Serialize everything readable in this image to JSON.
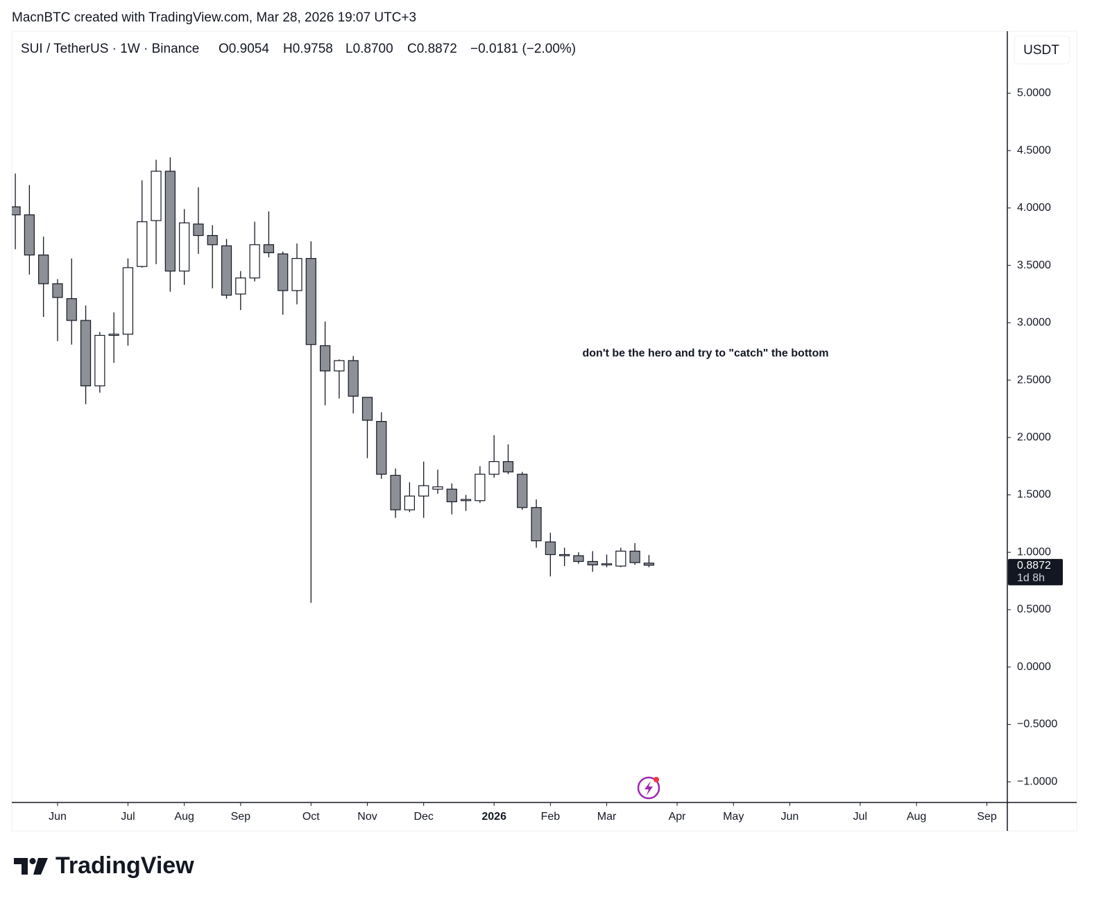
{
  "chart_data": {
    "type": "candlestick",
    "attribution": "MacnBTC created with TradingView.com, Mar 28, 2026 19:07 UTC+3",
    "header": {
      "symbol": "SUI / TetherUS · 1W · Binance",
      "open": "O0.9054",
      "high": "H0.9758",
      "low": "L0.8700",
      "close": "C0.8872",
      "change": "−0.0181 (−2.00%)"
    },
    "annotation": "don't be the hero and try to \"catch\" the bottom",
    "currency": "USDT",
    "last_price": {
      "value": 0.8872,
      "label": "0.8872"
    },
    "countdown": "1d 8h",
    "logo": "TradingView",
    "up_color": "#ffffff",
    "down_color": "#8e9097",
    "x": [
      0,
      1,
      2,
      3,
      4,
      5,
      6,
      7,
      8,
      9,
      10,
      11,
      12,
      13,
      14,
      15,
      16,
      17,
      18,
      19,
      20,
      21,
      22,
      23,
      24,
      25,
      26,
      27,
      28,
      29,
      30,
      31,
      32,
      33,
      34,
      35,
      36,
      37,
      38,
      39,
      40,
      41,
      42,
      43,
      44,
      45
    ],
    "open": [
      4.01,
      3.94,
      3.59,
      3.34,
      3.21,
      3.02,
      2.45,
      2.89,
      2.9,
      3.49,
      3.89,
      4.32,
      3.45,
      3.86,
      3.76,
      3.67,
      3.25,
      3.39,
      3.68,
      3.6,
      3.28,
      3.56,
      2.8,
      2.58,
      2.67,
      2.35,
      2.14,
      1.67,
      1.37,
      1.49,
      1.55,
      1.55,
      1.45,
      1.45,
      1.68,
      1.79,
      1.68,
      1.39,
      1.09,
      0.97,
      0.97,
      0.92,
      0.89,
      0.88,
      1.01,
      0.9054
    ],
    "high": [
      4.3,
      4.2,
      3.75,
      3.38,
      3.56,
      3.15,
      2.92,
      3.09,
      3.56,
      4.24,
      4.42,
      4.44,
      3.99,
      4.18,
      3.85,
      3.73,
      3.45,
      3.88,
      3.97,
      3.62,
      3.69,
      3.71,
      3.01,
      2.68,
      2.71,
      2.35,
      2.22,
      1.73,
      1.61,
      1.79,
      1.72,
      1.6,
      1.5,
      1.75,
      2.02,
      1.94,
      1.7,
      1.46,
      1.17,
      1.04,
      1.0,
      1.01,
      0.98,
      1.04,
      1.08,
      0.9758
    ],
    "low": [
      3.64,
      3.42,
      3.05,
      2.84,
      2.81,
      2.29,
      2.39,
      2.65,
      2.8,
      3.48,
      3.51,
      3.27,
      3.33,
      3.6,
      3.3,
      3.21,
      3.11,
      3.36,
      3.57,
      3.07,
      3.16,
      0.56,
      2.28,
      2.34,
      2.21,
      1.82,
      1.64,
      1.3,
      1.35,
      1.3,
      1.51,
      1.33,
      1.36,
      1.43,
      1.65,
      1.68,
      1.37,
      1.04,
      0.79,
      0.88,
      0.9,
      0.83,
      0.87,
      0.87,
      0.89,
      0.87
    ],
    "close": [
      3.94,
      3.59,
      3.34,
      3.22,
      3.02,
      2.45,
      2.89,
      2.9,
      3.48,
      3.88,
      4.32,
      3.45,
      3.87,
      3.76,
      3.68,
      3.24,
      3.39,
      3.68,
      3.61,
      3.28,
      3.56,
      2.81,
      2.58,
      2.67,
      2.36,
      2.15,
      1.68,
      1.37,
      1.49,
      1.58,
      1.57,
      1.44,
      1.46,
      1.68,
      1.79,
      1.7,
      1.39,
      1.1,
      0.98,
      0.98,
      0.92,
      0.89,
      0.9,
      1.01,
      0.91,
      0.8872
    ],
    "xlim": [
      -0.25,
      70.45
    ],
    "xticks": [
      {
        "value": 3,
        "label": "Jun"
      },
      {
        "value": 8,
        "label": "Jul"
      },
      {
        "value": 12,
        "label": "Aug"
      },
      {
        "value": 16,
        "label": "Sep"
      },
      {
        "value": 21,
        "label": "Oct"
      },
      {
        "value": 25,
        "label": "Nov"
      },
      {
        "value": 29,
        "label": "Dec"
      },
      {
        "value": 34,
        "label": "2026"
      },
      {
        "value": 38,
        "label": "Feb"
      },
      {
        "value": 42,
        "label": "Mar"
      },
      {
        "value": 47,
        "label": "Apr"
      },
      {
        "value": 51,
        "label": "May"
      },
      {
        "value": 55,
        "label": "Jun"
      },
      {
        "value": 60,
        "label": "Jul"
      },
      {
        "value": 64,
        "label": "Aug"
      },
      {
        "value": 69,
        "label": "Sep"
      }
    ],
    "ylim": [
      -1.18,
      5.54
    ],
    "yticks": [
      {
        "value": 5,
        "label": "5.0000"
      },
      {
        "value": 4.5,
        "label": "4.5000"
      },
      {
        "value": 4,
        "label": "4.0000"
      },
      {
        "value": 3.5,
        "label": "3.5000"
      },
      {
        "value": 3,
        "label": "3.0000"
      },
      {
        "value": 2.5,
        "label": "2.5000"
      },
      {
        "value": 2,
        "label": "2.0000"
      },
      {
        "value": 1.5,
        "label": "1.5000"
      },
      {
        "value": 1,
        "label": "1.0000"
      },
      {
        "value": 0.5,
        "label": "0.5000"
      },
      {
        "value": 0,
        "label": "0.0000"
      },
      {
        "value": -0.5,
        "label": "−0.5000"
      },
      {
        "value": -1,
        "label": "−1.0000"
      }
    ],
    "grid": false
  }
}
